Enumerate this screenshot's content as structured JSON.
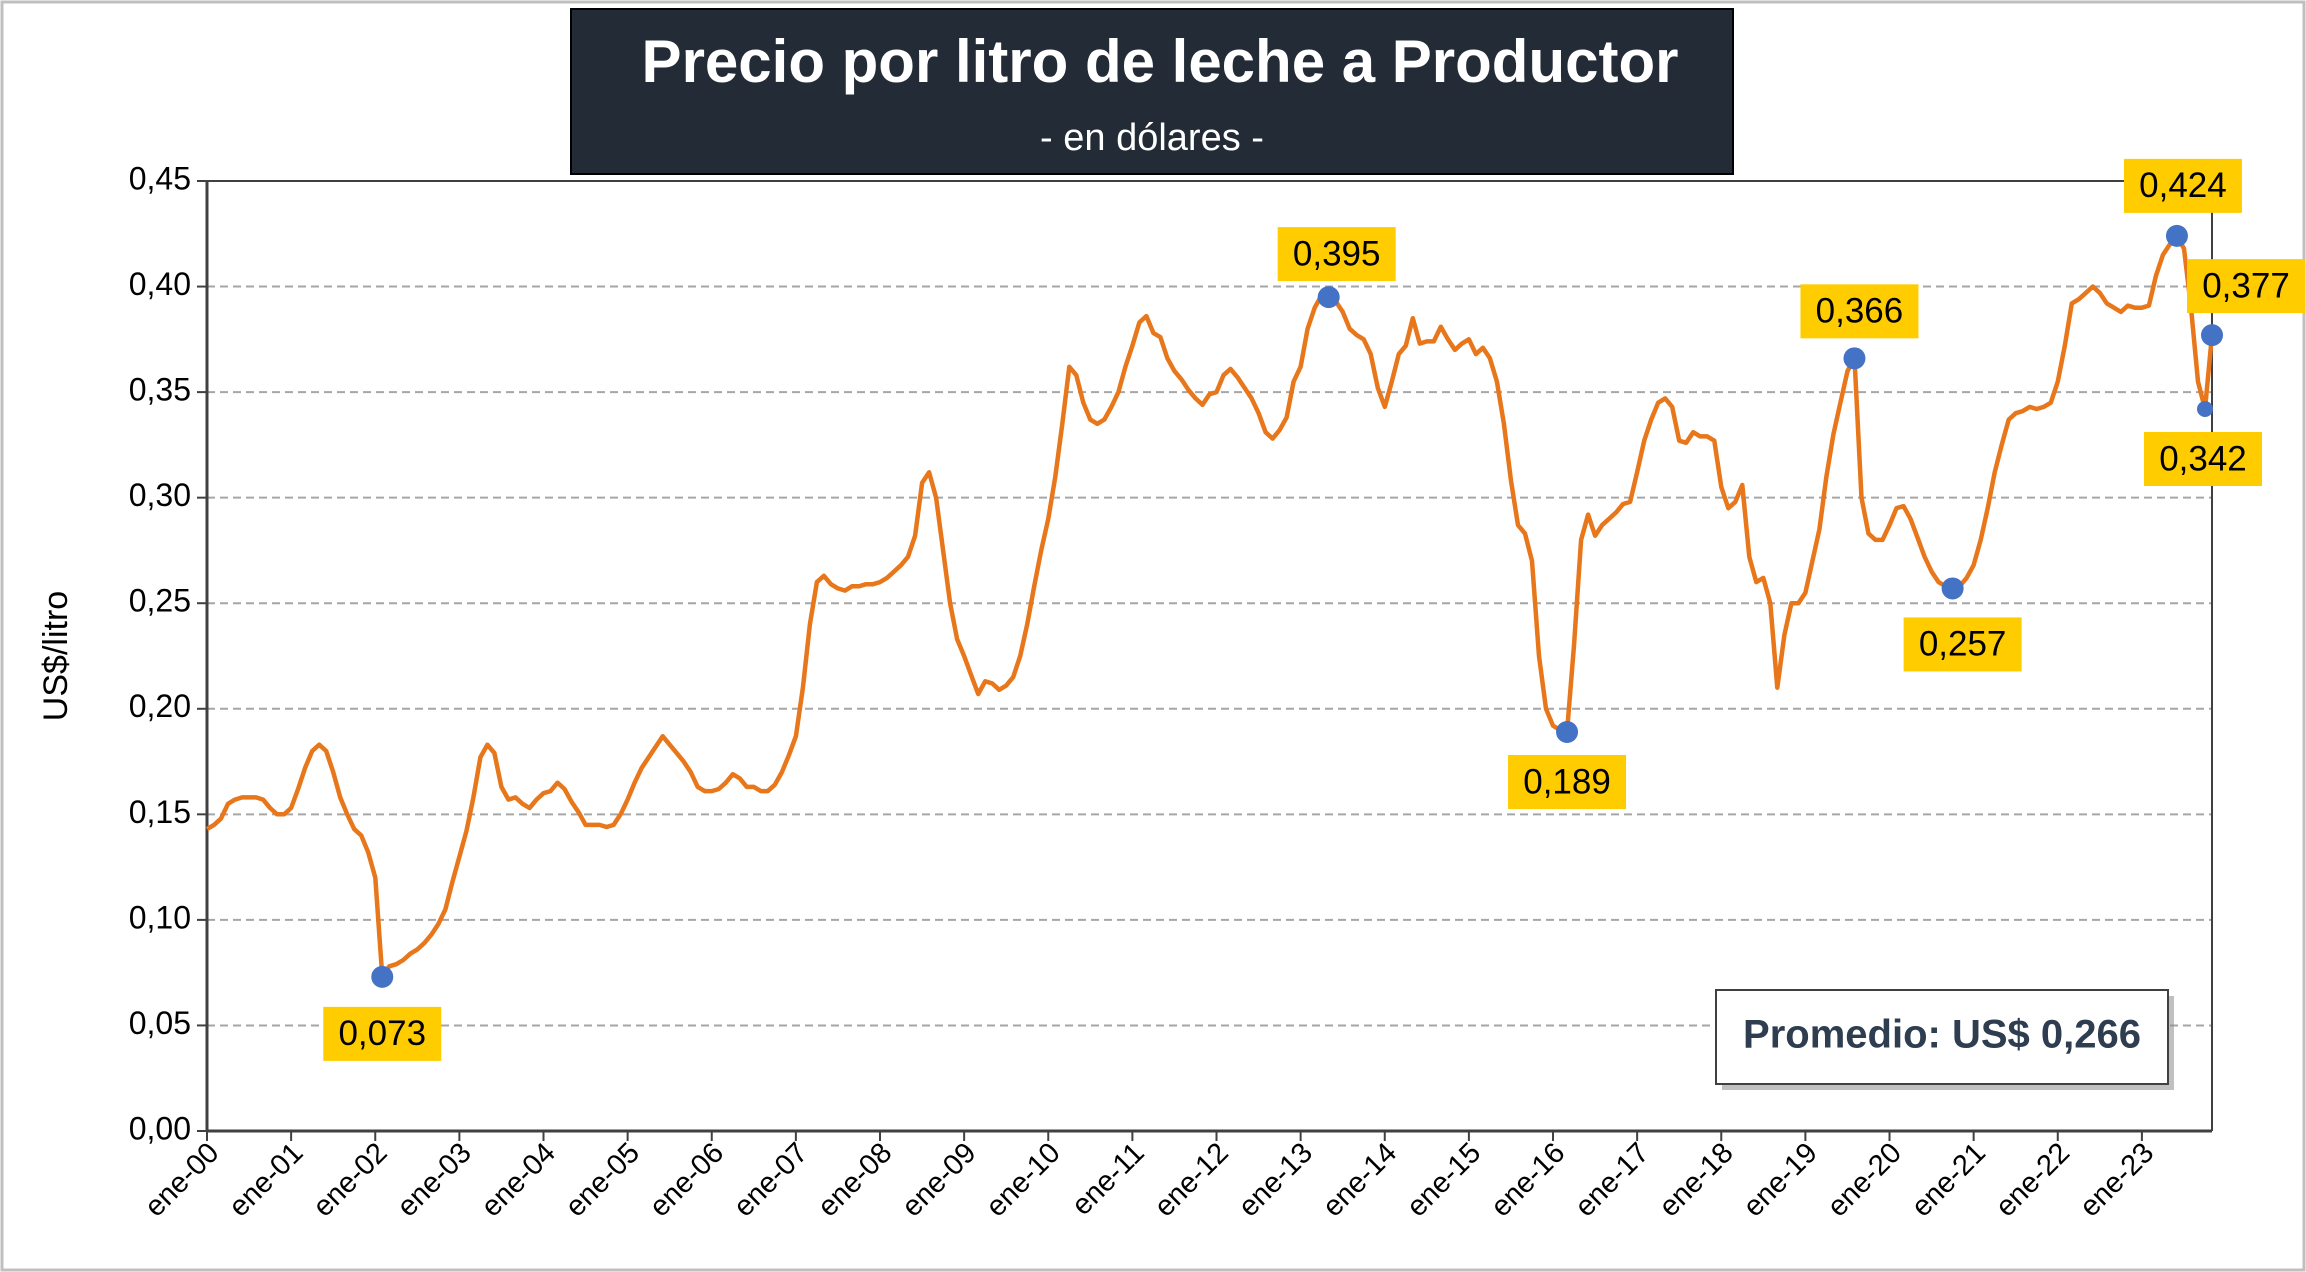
{
  "chart_data": {
    "type": "line",
    "title": "Precio por litro de leche a Productor",
    "subtitle": "- en dólares -",
    "y_label": "US$/litro",
    "annotation": "Promedio: US$ 0,266",
    "categories": [
      "ene-00",
      null,
      null,
      null,
      null,
      null,
      null,
      null,
      null,
      null,
      null,
      null,
      "ene-01",
      null,
      null,
      null,
      null,
      null,
      null,
      null,
      null,
      null,
      null,
      null,
      "ene-02",
      null,
      null,
      null,
      null,
      null,
      null,
      null,
      null,
      null,
      null,
      null,
      "ene-03",
      null,
      null,
      null,
      null,
      null,
      null,
      null,
      null,
      null,
      null,
      null,
      "ene-04",
      null,
      null,
      null,
      null,
      null,
      null,
      null,
      null,
      null,
      null,
      null,
      "ene-05",
      null,
      null,
      null,
      null,
      null,
      null,
      null,
      null,
      null,
      null,
      null,
      "ene-06",
      null,
      null,
      null,
      null,
      null,
      null,
      null,
      null,
      null,
      null,
      null,
      "ene-07",
      null,
      null,
      null,
      null,
      null,
      null,
      null,
      null,
      null,
      null,
      null,
      "ene-08",
      null,
      null,
      null,
      null,
      null,
      null,
      null,
      null,
      null,
      null,
      null,
      "ene-09",
      null,
      null,
      null,
      null,
      null,
      null,
      null,
      null,
      null,
      null,
      null,
      "ene-10",
      null,
      null,
      null,
      null,
      null,
      null,
      null,
      null,
      null,
      null,
      null,
      "ene-11",
      null,
      null,
      null,
      null,
      null,
      null,
      null,
      null,
      null,
      null,
      null,
      "ene-12",
      null,
      null,
      null,
      null,
      null,
      null,
      null,
      null,
      null,
      null,
      null,
      "ene-13",
      null,
      null,
      null,
      null,
      null,
      null,
      null,
      null,
      null,
      null,
      null,
      "ene-14",
      null,
      null,
      null,
      null,
      null,
      null,
      null,
      null,
      null,
      null,
      null,
      "ene-15",
      null,
      null,
      null,
      null,
      null,
      null,
      null,
      null,
      null,
      null,
      null,
      "ene-16",
      null,
      null,
      null,
      null,
      null,
      null,
      null,
      null,
      null,
      null,
      null,
      "ene-17",
      null,
      null,
      null,
      null,
      null,
      null,
      null,
      null,
      null,
      null,
      null,
      "ene-18",
      null,
      null,
      null,
      null,
      null,
      null,
      null,
      null,
      null,
      null,
      null,
      "ene-19",
      null,
      null,
      null,
      null,
      null,
      null,
      null,
      null,
      null,
      null,
      null,
      "ene-20",
      null,
      null,
      null,
      null,
      null,
      null,
      null,
      null,
      null,
      null,
      null,
      "ene-21",
      null,
      null,
      null,
      null,
      null,
      null,
      null,
      null,
      null,
      null,
      null,
      "ene-22",
      null,
      null,
      null,
      null,
      null,
      null,
      null,
      null,
      null,
      null,
      null,
      "ene-23",
      null,
      null,
      null,
      null,
      null,
      null,
      null,
      null,
      null,
      null
    ],
    "series": [
      {
        "color": "#e8761a",
        "marker_color": "#4472c4",
        "values": [
          0.143,
          0.145,
          0.148,
          0.155,
          0.157,
          0.158,
          0.158,
          0.158,
          0.157,
          0.153,
          0.15,
          0.15,
          0.153,
          0.162,
          0.172,
          0.18,
          0.183,
          0.18,
          0.17,
          0.158,
          0.15,
          0.143,
          0.14,
          0.132,
          0.12,
          0.073,
          0.078,
          0.079,
          0.081,
          0.084,
          0.086,
          0.089,
          0.093,
          0.098,
          0.105,
          0.118,
          0.13,
          0.142,
          0.158,
          0.177,
          0.183,
          0.179,
          0.163,
          0.157,
          0.158,
          0.155,
          0.153,
          0.157,
          0.16,
          0.161,
          0.165,
          0.162,
          0.156,
          0.151,
          0.145,
          0.145,
          0.145,
          0.144,
          0.145,
          0.15,
          0.157,
          0.165,
          0.172,
          0.177,
          0.182,
          0.187,
          0.183,
          0.179,
          0.175,
          0.17,
          0.163,
          0.161,
          0.161,
          0.162,
          0.165,
          0.169,
          0.167,
          0.163,
          0.163,
          0.161,
          0.161,
          0.164,
          0.17,
          0.178,
          0.187,
          0.21,
          0.24,
          0.26,
          0.263,
          0.259,
          0.257,
          0.256,
          0.258,
          0.258,
          0.259,
          0.259,
          0.26,
          0.262,
          0.265,
          0.268,
          0.272,
          0.282,
          0.307,
          0.312,
          0.3,
          0.275,
          0.25,
          0.233,
          0.225,
          0.216,
          0.207,
          0.213,
          0.212,
          0.209,
          0.211,
          0.215,
          0.225,
          0.24,
          0.258,
          0.275,
          0.29,
          0.31,
          0.335,
          0.362,
          0.358,
          0.345,
          0.337,
          0.335,
          0.337,
          0.343,
          0.35,
          0.362,
          0.372,
          0.383,
          0.386,
          0.378,
          0.376,
          0.366,
          0.36,
          0.356,
          0.351,
          0.347,
          0.344,
          0.349,
          0.35,
          0.358,
          0.361,
          0.357,
          0.352,
          0.347,
          0.34,
          0.331,
          0.328,
          0.332,
          0.338,
          0.355,
          0.362,
          0.38,
          0.39,
          0.396,
          0.395,
          0.393,
          0.388,
          0.38,
          0.377,
          0.375,
          0.368,
          0.352,
          0.343,
          0.355,
          0.368,
          0.372,
          0.385,
          0.373,
          0.374,
          0.374,
          0.381,
          0.375,
          0.37,
          0.373,
          0.375,
          0.368,
          0.371,
          0.366,
          0.355,
          0.335,
          0.308,
          0.287,
          0.283,
          0.27,
          0.225,
          0.2,
          0.192,
          0.19,
          0.189,
          0.23,
          0.28,
          0.292,
          0.282,
          0.287,
          0.29,
          0.293,
          0.297,
          0.298,
          0.312,
          0.327,
          0.337,
          0.345,
          0.347,
          0.343,
          0.327,
          0.326,
          0.331,
          0.329,
          0.329,
          0.327,
          0.305,
          0.295,
          0.298,
          0.306,
          0.272,
          0.26,
          0.262,
          0.25,
          0.21,
          0.235,
          0.25,
          0.25,
          0.255,
          0.27,
          0.285,
          0.31,
          0.33,
          0.345,
          0.36,
          0.366,
          0.3,
          0.283,
          0.28,
          0.28,
          0.287,
          0.295,
          0.296,
          0.29,
          0.281,
          0.272,
          0.265,
          0.26,
          0.258,
          0.257,
          0.258,
          0.262,
          0.268,
          0.28,
          0.295,
          0.312,
          0.325,
          0.337,
          0.34,
          0.341,
          0.343,
          0.342,
          0.343,
          0.345,
          0.355,
          0.372,
          0.392,
          0.394,
          0.397,
          0.4,
          0.397,
          0.392,
          0.39,
          0.388,
          0.391,
          0.39,
          0.39,
          0.391,
          0.405,
          0.415,
          0.42,
          0.424,
          0.418,
          0.39,
          0.355,
          0.342,
          0.377
        ],
        "value_labels": [
          null,
          null,
          null,
          null,
          null,
          null,
          null,
          null,
          null,
          null,
          null,
          null,
          null,
          null,
          null,
          null,
          null,
          null,
          null,
          null,
          null,
          null,
          null,
          null,
          null,
          "0,073",
          null,
          null,
          null,
          null,
          null,
          null,
          null,
          null,
          null,
          null,
          null,
          null,
          null,
          null,
          null,
          null,
          null,
          null,
          null,
          null,
          null,
          null,
          null,
          null,
          null,
          null,
          null,
          null,
          null,
          null,
          null,
          null,
          null,
          null,
          null,
          null,
          null,
          null,
          null,
          null,
          null,
          null,
          null,
          null,
          null,
          null,
          null,
          null,
          null,
          null,
          null,
          null,
          null,
          null,
          null,
          null,
          null,
          null,
          null,
          null,
          null,
          null,
          null,
          null,
          null,
          null,
          null,
          null,
          null,
          null,
          null,
          null,
          null,
          null,
          null,
          null,
          null,
          null,
          null,
          null,
          null,
          null,
          null,
          null,
          null,
          null,
          null,
          null,
          null,
          null,
          null,
          null,
          null,
          null,
          null,
          null,
          null,
          null,
          null,
          null,
          null,
          null,
          null,
          null,
          null,
          null,
          null,
          null,
          null,
          null,
          null,
          null,
          null,
          null,
          null,
          null,
          null,
          null,
          null,
          null,
          null,
          null,
          null,
          null,
          null,
          null,
          null,
          null,
          null,
          null,
          null,
          null,
          null,
          null,
          "0,395",
          null,
          null,
          null,
          null,
          null,
          null,
          null,
          null,
          null,
          null,
          null,
          null,
          null,
          null,
          null,
          null,
          null,
          null,
          null,
          null,
          null,
          null,
          null,
          null,
          null,
          null,
          null,
          null,
          null,
          null,
          null,
          null,
          null,
          "0,189",
          null,
          null,
          null,
          null,
          null,
          null,
          null,
          null,
          null,
          null,
          null,
          null,
          null,
          null,
          null,
          null,
          null,
          null,
          null,
          null,
          null,
          null,
          null,
          null,
          null,
          null,
          null,
          null,
          null,
          null,
          null,
          null,
          null,
          null,
          null,
          null,
          null,
          null,
          null,
          null,
          "0,366",
          null,
          null,
          null,
          null,
          null,
          null,
          null,
          null,
          null,
          null,
          null,
          null,
          null,
          "0,257",
          null,
          null,
          null,
          null,
          null,
          null,
          null,
          null,
          null,
          null,
          null,
          null,
          null,
          null,
          null,
          null,
          null,
          null,
          null,
          null,
          null,
          null,
          null,
          null,
          null,
          null,
          null,
          null,
          null,
          null,
          null,
          "0,424",
          null,
          null,
          null,
          "0,342",
          "0,377"
        ]
      }
    ],
    "ylim": [
      0,
      0.45
    ],
    "yticks": [
      {
        "value": 0,
        "label": "0,00"
      },
      {
        "value": 0.05,
        "label": "0,05"
      },
      {
        "value": 0.1,
        "label": "0,10"
      },
      {
        "value": 0.15,
        "label": "0,15"
      },
      {
        "value": 0.2,
        "label": "0,20"
      },
      {
        "value": 0.25,
        "label": "0,25"
      },
      {
        "value": 0.3,
        "label": "0,30"
      },
      {
        "value": 0.35,
        "label": "0,35"
      },
      {
        "value": 0.4,
        "label": "0,40"
      },
      {
        "value": 0.45,
        "label": "0,45"
      }
    ],
    "grid": true
  }
}
